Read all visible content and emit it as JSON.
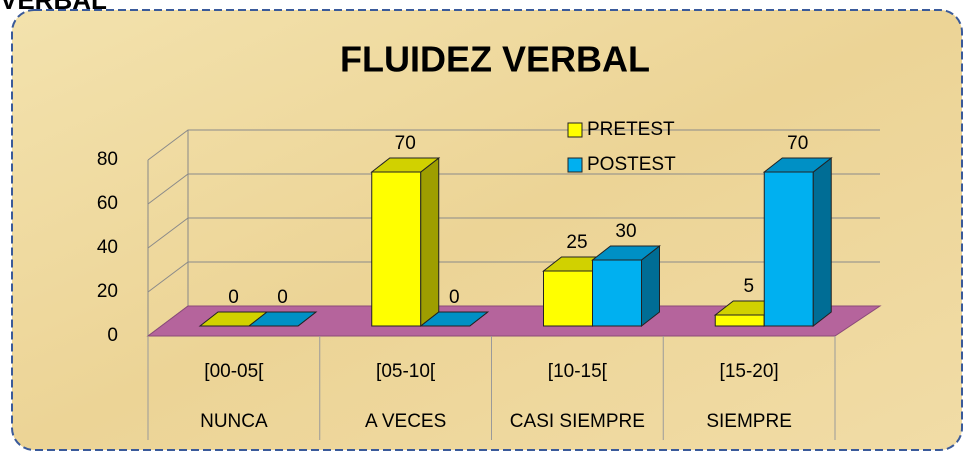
{
  "page_label": "VERBAL",
  "chart_data": {
    "type": "bar3d",
    "title": "FLUIDEZ VERBAL",
    "categories": [
      "[00-05[",
      "[05-10[",
      "[10-15[",
      "[15-20]"
    ],
    "category_groups": [
      "NUNCA",
      "A VECES",
      "CASI SIEMPRE",
      "SIEMPRE"
    ],
    "series": [
      {
        "name": "PRETEST",
        "color": "#ffff00",
        "values": [
          0,
          70,
          25,
          5
        ]
      },
      {
        "name": "POSTEST",
        "color": "#00b0f0",
        "values": [
          0,
          0,
          30,
          70
        ]
      }
    ],
    "ylim": [
      0,
      80
    ],
    "yticks": [
      0,
      20,
      40,
      60,
      80
    ],
    "grid": true,
    "legend": "top"
  }
}
